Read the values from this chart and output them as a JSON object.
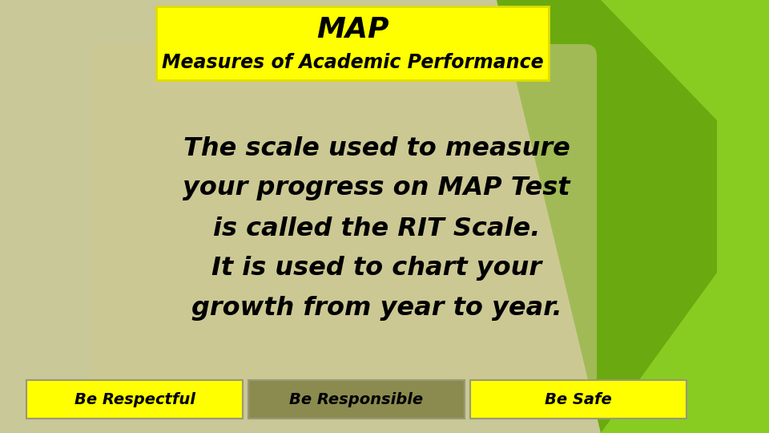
{
  "background_color": "#c8c898",
  "title_box_color": "#ffff00",
  "title_text": "MAP",
  "subtitle_text": "Measures of Academic Performance",
  "title_fontsize": 26,
  "subtitle_fontsize": 17,
  "main_text_line1": "The scale used to measure",
  "main_text_line2": "your progress on MAP Test",
  "main_text_line3": "is called the RIT Scale.",
  "main_text_line4": "It is used to chart your",
  "main_text_line5": "growth from year to year.",
  "main_fontsize": 23,
  "main_text_color": "#000000",
  "green_light": "#88cc22",
  "green_dark": "#6aaa10",
  "green_strip": "#80be18",
  "button_bg_left": "#ffff00",
  "button_bg_mid": "#8b8b50",
  "button_bg_right": "#ffff00",
  "button_text_left": "Be Respectful",
  "button_text_mid": "Be Responsible",
  "button_text_right": "Be Safe",
  "button_fontsize": 14
}
